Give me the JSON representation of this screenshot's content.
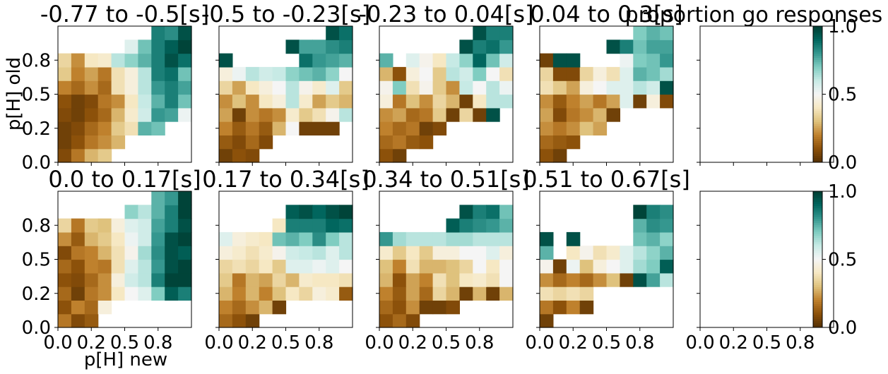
{
  "chart_data": {
    "type": "heatmap",
    "colormap": "BrBG",
    "x_ticks": [
      "0.0",
      "0.2",
      "0.5",
      "0.8"
    ],
    "y_ticks": [
      "0.0",
      "0.2",
      "0.5",
      "0.8"
    ],
    "xlabel": "p[H] new",
    "ylabel": "p[H] old",
    "grid": false,
    "colorbar": {
      "label": "proportion go responses",
      "ticks": [
        "0.0",
        "0.5",
        "1.0"
      ],
      "vmin": 0,
      "vmax": 1
    },
    "panels": [
      {
        "title": "-0.77 to -0.5[s]",
        "rows": [
          [
            0.08,
            0.18,
            0.28,
            0.32,
            null,
            null,
            null,
            null,
            null,
            null
          ],
          [
            0.05,
            0.1,
            0.18,
            0.22,
            0.28,
            null,
            null,
            null,
            null,
            null
          ],
          [
            0.05,
            0.08,
            0.15,
            0.2,
            0.32,
            0.38,
            0.75,
            0.72,
            null,
            null
          ],
          [
            0.08,
            0.05,
            0.1,
            0.15,
            0.28,
            0.42,
            0.58,
            0.8,
            0.78,
            0.52
          ],
          [
            0.1,
            0.05,
            0.08,
            0.18,
            0.22,
            0.4,
            0.6,
            0.75,
            0.85,
            0.72
          ],
          [
            0.2,
            0.15,
            0.22,
            0.15,
            0.38,
            0.45,
            0.62,
            0.8,
            0.85,
            0.78
          ],
          [
            0.32,
            0.2,
            0.25,
            0.18,
            0.38,
            0.45,
            0.62,
            0.85,
            0.88,
            0.72
          ],
          [
            0.35,
            0.22,
            0.4,
            0.42,
            0.62,
            0.68,
            0.75,
            0.85,
            0.95,
            0.88
          ],
          [
            null,
            null,
            null,
            null,
            null,
            0.55,
            0.72,
            0.85,
            0.92,
            0.98
          ],
          [
            null,
            null,
            null,
            null,
            null,
            null,
            null,
            0.85,
            0.82,
            0.95
          ]
        ]
      },
      {
        "title": "-0.5 to -0.23[s]",
        "rows": [
          [
            0.05,
            0.1,
            0.08,
            null,
            null,
            null,
            null,
            null,
            null,
            null
          ],
          [
            0.12,
            0.08,
            0.15,
            0.08,
            null,
            null,
            null,
            null,
            null,
            null
          ],
          [
            0.2,
            0.12,
            0.18,
            0.12,
            0.28,
            0.5,
            0.05,
            0.05,
            0.05,
            null
          ],
          [
            0.25,
            0.05,
            0.22,
            0.18,
            0.22,
            0.42,
            0.32,
            0.38,
            0.48,
            0.62
          ],
          [
            0.22,
            0.3,
            0.22,
            0.4,
            0.45,
            0.62,
            0.42,
            0.25,
            0.32,
            0.28
          ],
          [
            0.35,
            0.25,
            0.4,
            0.45,
            0.5,
            0.62,
            0.48,
            0.42,
            0.55,
            0.32
          ],
          [
            0.45,
            0.52,
            0.62,
            0.58,
            0.6,
            0.68,
            0.72,
            0.75,
            0.68,
            0.5
          ],
          [
            0.95,
            null,
            null,
            null,
            null,
            null,
            0.88,
            0.8,
            0.78,
            0.75
          ],
          [
            null,
            null,
            null,
            null,
            null,
            0.95,
            0.78,
            0.78,
            0.82,
            0.85
          ],
          [
            null,
            null,
            null,
            null,
            null,
            null,
            null,
            null,
            0.95,
            0.88
          ]
        ]
      },
      {
        "title": "-0.23 to 0.04[s]",
        "rows": [
          [
            0.1,
            0.05,
            null,
            null,
            null,
            null,
            null,
            null,
            null,
            null
          ],
          [
            0.15,
            0.18,
            0.12,
            0.1,
            null,
            null,
            null,
            null,
            null,
            null
          ],
          [
            0.2,
            0.15,
            0.18,
            0.05,
            0.08,
            null,
            null,
            null,
            null,
            null
          ],
          [
            0.22,
            0.25,
            0.15,
            0.18,
            0.32,
            0.05,
            0.35,
            0.05,
            0.95,
            null
          ],
          [
            0.45,
            0.18,
            0.3,
            0.22,
            0.35,
            0.28,
            0.05,
            0.4,
            0.62,
            0.62
          ],
          [
            0.48,
            0.7,
            0.38,
            0.48,
            0.32,
            0.22,
            0.6,
            0.5,
            0.62,
            0.52
          ],
          [
            0.28,
            0.1,
            0.45,
            0.5,
            0.32,
            0.62,
            0.58,
            0.7,
            0.5,
            0.38
          ],
          [
            0.75,
            null,
            0.55,
            0.48,
            0.4,
            0.6,
            0.68,
            0.9,
            0.72,
            0.58
          ],
          [
            null,
            null,
            null,
            null,
            null,
            null,
            0.95,
            0.85,
            0.88,
            0.8
          ],
          [
            null,
            null,
            null,
            null,
            null,
            null,
            null,
            0.95,
            0.85,
            0.85
          ]
        ]
      },
      {
        "title": "0.04 to 0.3[s]",
        "rows": [
          [
            0.1,
            0.05,
            null,
            null,
            null,
            null,
            null,
            null,
            null,
            null
          ],
          [
            0.15,
            0.12,
            0.1,
            null,
            null,
            null,
            null,
            null,
            null,
            null
          ],
          [
            0.22,
            0.18,
            0.22,
            0.3,
            0.25,
            null,
            null,
            null,
            null,
            null
          ],
          [
            0.25,
            0.08,
            0.18,
            0.22,
            0.28,
            0.05,
            null,
            null,
            null,
            null
          ],
          [
            0.22,
            0.12,
            0.2,
            0.25,
            0.18,
            0.25,
            0.55,
            0.05,
            0.45,
            0.08
          ],
          [
            0.38,
            0.32,
            0.25,
            0.45,
            0.5,
            0.55,
            0.55,
            0.62,
            0.58,
            0.95
          ],
          [
            0.35,
            0.08,
            0.08,
            0.35,
            0.45,
            0.38,
            0.55,
            0.75,
            0.72,
            0.65
          ],
          [
            0.05,
            0.95,
            0.95,
            null,
            null,
            null,
            0.52,
            0.7,
            0.72,
            0.8
          ],
          [
            null,
            null,
            null,
            null,
            null,
            0.95,
            0.85,
            0.72,
            0.78,
            0.78
          ],
          [
            null,
            null,
            null,
            null,
            null,
            null,
            null,
            0.7,
            0.75,
            0.72
          ]
        ]
      },
      {
        "title": "",
        "rows": []
      },
      {
        "title": "0.0 to 0.17[s]",
        "rows": [
          [
            0.18,
            0.08,
            0.12,
            null,
            null,
            null,
            null,
            null,
            null,
            null
          ],
          [
            0.1,
            0.2,
            0.15,
            0.45,
            null,
            null,
            null,
            null,
            null,
            null
          ],
          [
            0.15,
            0.05,
            0.18,
            0.22,
            0.4,
            0.5,
            0.55,
            0.7,
            0.92,
            0.85
          ],
          [
            0.1,
            0.08,
            0.15,
            0.22,
            0.45,
            0.58,
            0.62,
            0.85,
            0.98,
            0.98
          ],
          [
            0.15,
            0.1,
            0.2,
            0.18,
            0.38,
            0.55,
            0.62,
            0.8,
            0.95,
            0.98
          ],
          [
            0.08,
            0.18,
            0.2,
            0.28,
            0.38,
            0.48,
            0.65,
            0.82,
            0.95,
            0.92
          ],
          [
            0.22,
            0.12,
            0.28,
            0.32,
            0.4,
            0.52,
            0.58,
            0.8,
            0.95,
            0.98
          ],
          [
            0.35,
            0.18,
            0.32,
            0.3,
            0.45,
            0.55,
            0.58,
            0.78,
            0.85,
            0.95
          ],
          [
            null,
            null,
            null,
            null,
            null,
            0.68,
            0.62,
            0.75,
            0.85,
            0.98
          ],
          [
            null,
            null,
            null,
            null,
            null,
            null,
            null,
            0.75,
            0.8,
            0.98
          ]
        ]
      },
      {
        "title": "0.17 to 0.34[s]",
        "rows": [
          [
            0.15,
            0.1,
            0.05,
            null,
            null,
            null,
            null,
            null,
            null,
            null
          ],
          [
            0.2,
            0.15,
            0.22,
            0.28,
            0.05,
            null,
            null,
            null,
            null,
            null
          ],
          [
            0.28,
            0.2,
            0.28,
            0.2,
            0.3,
            0.4,
            0.35,
            0.45,
            0.42,
            0.12
          ],
          [
            0.32,
            0.18,
            0.28,
            0.25,
            0.35,
            0.28,
            0.42,
            0.4,
            0.4,
            0.38
          ],
          [
            0.35,
            0.38,
            0.35,
            0.4,
            0.32,
            0.55,
            0.55,
            0.52,
            0.55,
            0.5
          ],
          [
            0.45,
            0.42,
            0.38,
            0.42,
            0.48,
            0.58,
            0.6,
            0.62,
            0.55,
            0.62
          ],
          [
            0.55,
            0.45,
            0.42,
            0.4,
            0.72,
            0.75,
            0.7,
            0.82,
            0.7,
            0.62
          ],
          [
            null,
            null,
            null,
            null,
            0.4,
            0.85,
            0.85,
            0.85,
            0.9,
            0.88
          ],
          [
            null,
            null,
            null,
            null,
            null,
            0.92,
            0.95,
            0.9,
            0.95,
            0.98
          ],
          [
            null,
            null,
            null,
            null,
            null,
            null,
            null,
            null,
            null,
            null
          ]
        ]
      },
      {
        "title": "0.34 to 0.51[s]",
        "rows": [
          [
            0.1,
            0.15,
            0.08,
            null,
            null,
            null,
            null,
            null,
            null,
            null
          ],
          [
            0.15,
            0.1,
            0.22,
            0.05,
            0.05,
            0.08,
            null,
            null,
            null,
            null
          ],
          [
            0.2,
            0.12,
            0.25,
            0.15,
            0.35,
            0.28,
            0.05,
            0.28,
            0.05,
            0.28
          ],
          [
            0.28,
            0.1,
            0.25,
            0.2,
            0.38,
            0.3,
            0.4,
            0.42,
            0.38,
            0.5
          ],
          [
            0.3,
            0.2,
            0.38,
            0.28,
            0.28,
            0.3,
            0.35,
            0.5,
            0.4,
            0.5
          ],
          [
            0.42,
            0.32,
            0.4,
            0.32,
            0.45,
            0.45,
            0.5,
            0.5,
            0.55,
            0.45
          ],
          [
            0.8,
            0.65,
            0.62,
            0.62,
            0.62,
            0.65,
            0.65,
            0.62,
            0.62,
            0.62
          ],
          [
            null,
            null,
            null,
            null,
            null,
            0.92,
            0.85,
            0.82,
            0.8,
            0.75
          ],
          [
            null,
            null,
            null,
            null,
            null,
            null,
            0.95,
            0.85,
            0.88,
            0.72
          ],
          [
            null,
            null,
            null,
            null,
            null,
            null,
            null,
            null,
            null,
            null
          ]
        ]
      },
      {
        "title": "0.51 to 0.67[s]",
        "rows": [
          [
            0.05,
            null,
            null,
            null,
            null,
            null,
            null,
            null,
            null,
            null
          ],
          [
            0.18,
            0.1,
            0.2,
            0.05,
            null,
            null,
            null,
            null,
            null,
            null
          ],
          [
            0.38,
            0.35,
            0.38,
            0.35,
            null,
            null,
            null,
            null,
            null,
            null
          ],
          [
            0.22,
            0.15,
            0.2,
            0.15,
            0.22,
            0.3,
            0.05,
            0.95,
            0.78,
            0.62
          ],
          [
            0.48,
            0.05,
            0.52,
            0.3,
            0.45,
            0.5,
            0.55,
            0.65,
            0.7,
            0.92
          ],
          [
            0.75,
            null,
            0.4,
            0.48,
            0.38,
            0.42,
            0.55,
            0.62,
            0.68,
            0.75
          ],
          [
            0.95,
            null,
            0.95,
            null,
            null,
            null,
            null,
            0.72,
            0.75,
            0.68
          ],
          [
            null,
            null,
            null,
            null,
            null,
            null,
            null,
            0.75,
            0.82,
            0.8
          ],
          [
            null,
            null,
            null,
            null,
            null,
            null,
            null,
            0.98,
            0.85,
            0.82
          ],
          [
            null,
            null,
            null,
            null,
            null,
            null,
            null,
            null,
            null,
            null
          ]
        ]
      },
      {
        "title": "",
        "rows": []
      }
    ]
  }
}
